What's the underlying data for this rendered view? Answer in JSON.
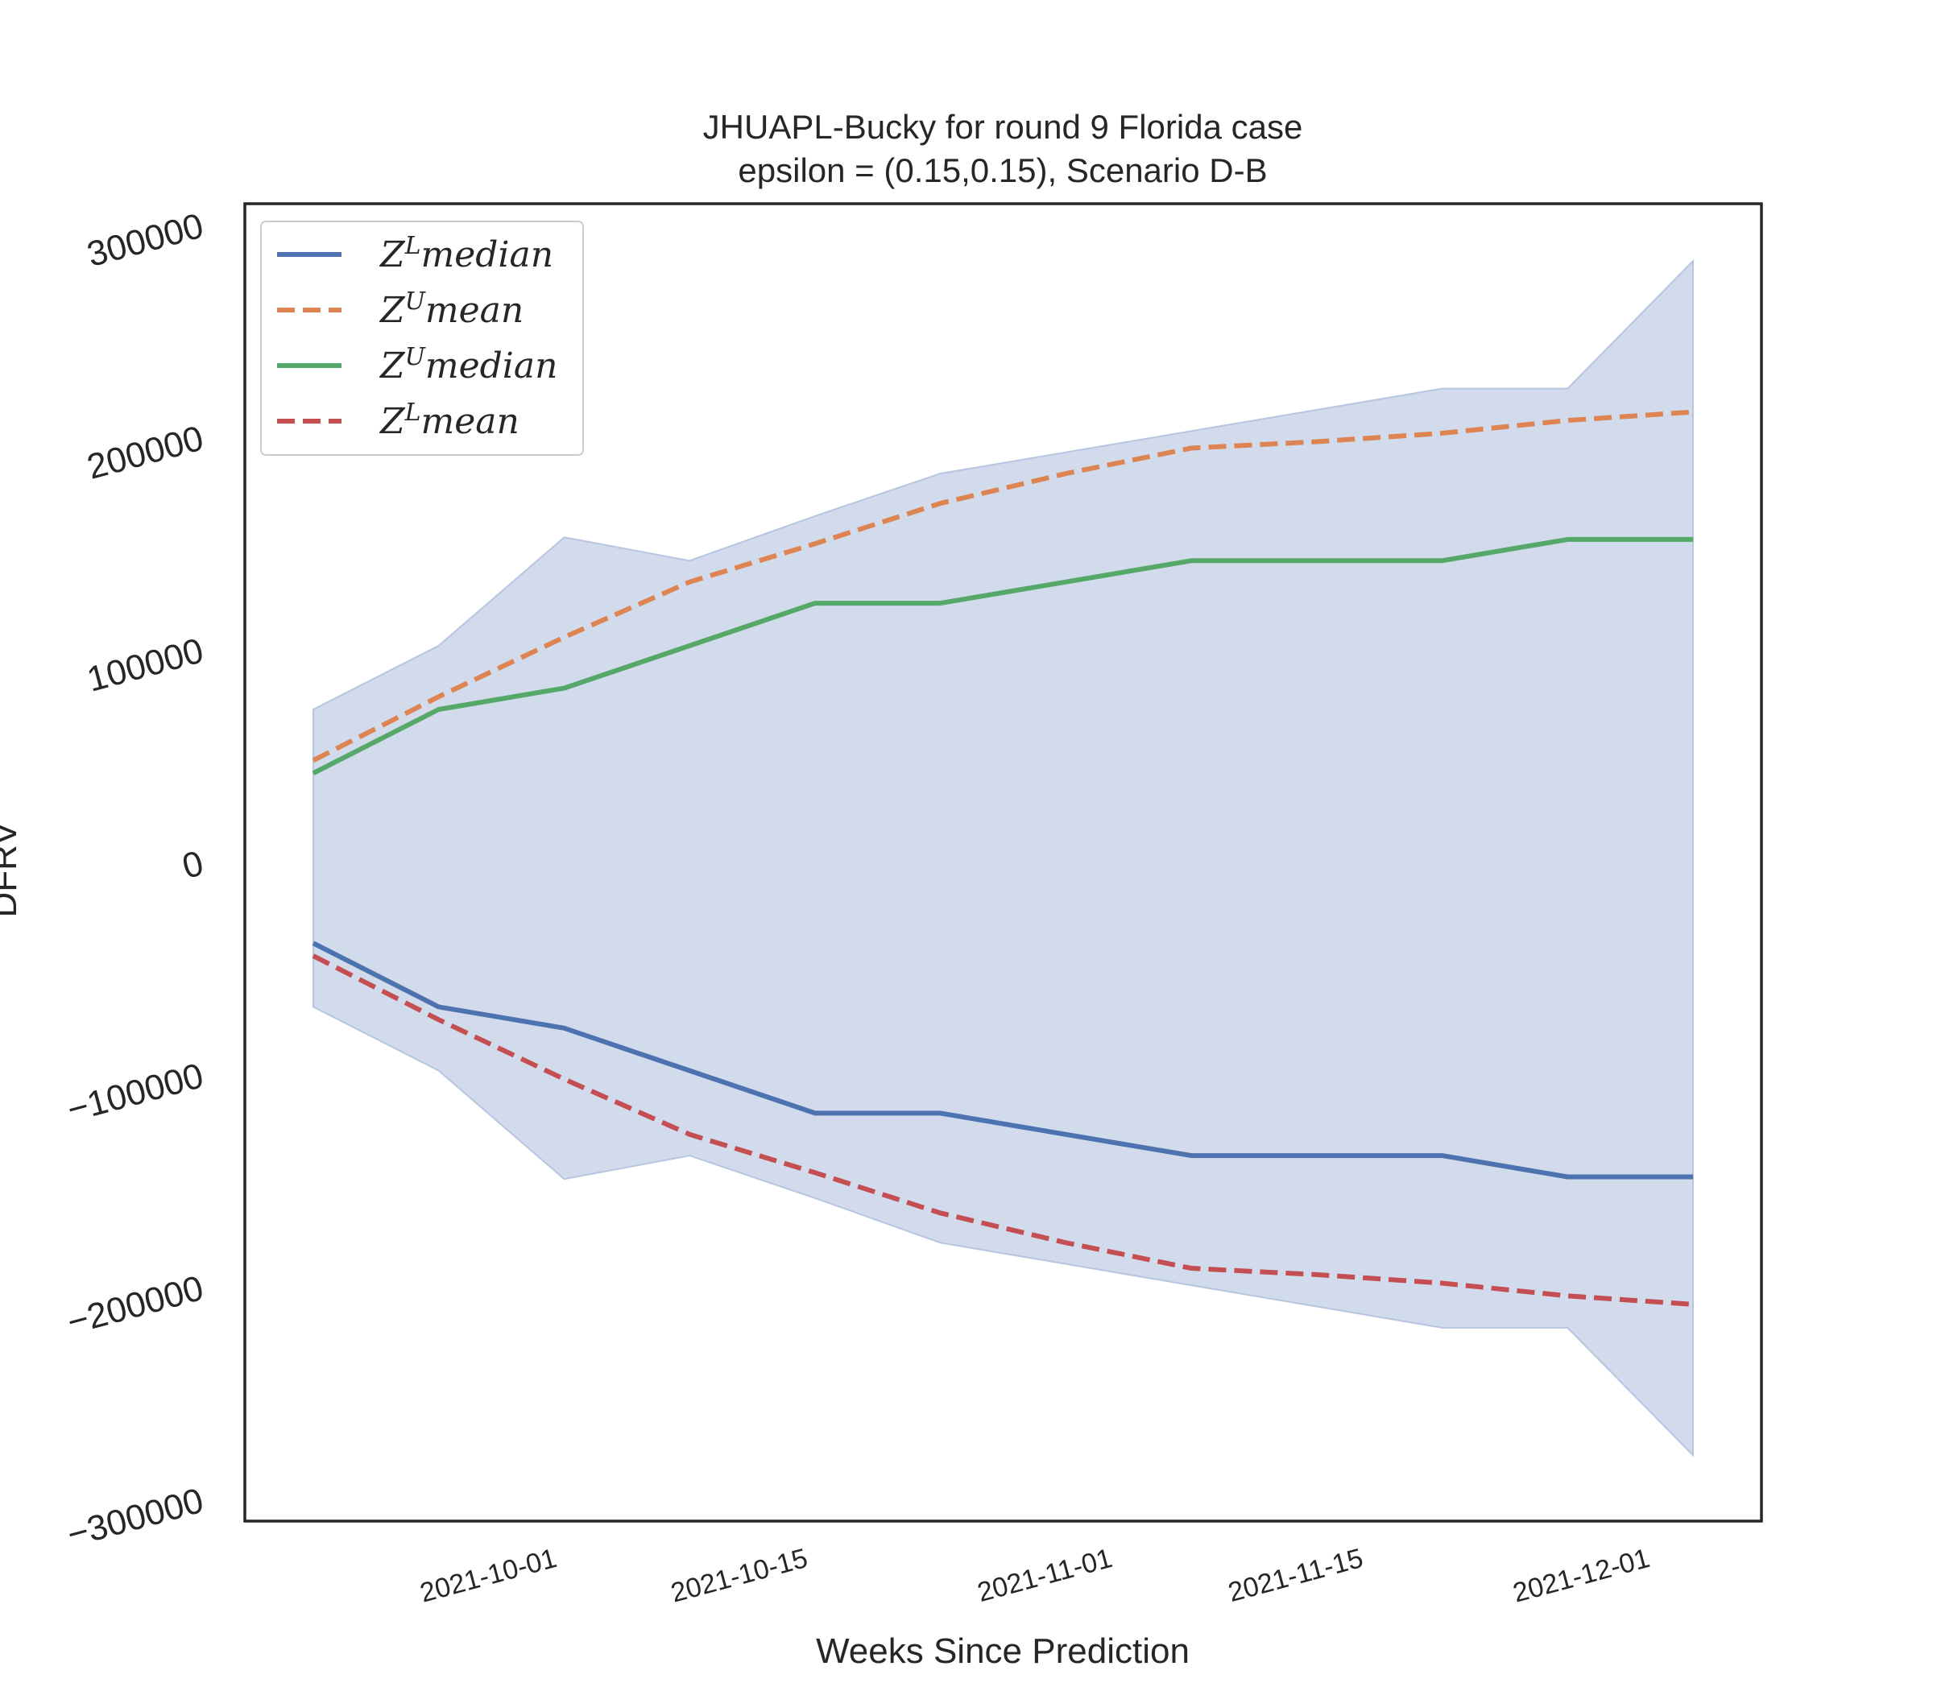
{
  "chart_data": {
    "type": "line",
    "title": "JHUAPL-Bucky for round 9 Florida  case",
    "subtitle": "epsilon = (0.15,0.15), Scenario D-B",
    "xlabel": "Weeks Since Prediction",
    "ylabel": "DFRV",
    "x": [
      "2021-09-18",
      "2021-09-25",
      "2021-10-02",
      "2021-10-09",
      "2021-10-16",
      "2021-10-23",
      "2021-10-30",
      "2021-11-06",
      "2021-11-13",
      "2021-11-20",
      "2021-11-27",
      "2021-12-04"
    ],
    "xticks": [
      "2021-10-01",
      "2021-10-15",
      "2021-11-01",
      "2021-11-15",
      "2021-12-01"
    ],
    "yticks": [
      -300000,
      -200000,
      -100000,
      0,
      100000,
      200000,
      300000
    ],
    "yticklabels": [
      "−300000",
      "−200000",
      "−100000",
      "0",
      "100000",
      "200000",
      "300000"
    ],
    "ylim": [
      -310000,
      310000
    ],
    "grid": false,
    "legend_position": "top-left",
    "band": {
      "upper": [
        72000,
        102000,
        153000,
        142000,
        163000,
        183000,
        193000,
        203000,
        213000,
        223000,
        223000,
        283000
      ],
      "lower": [
        -68000,
        -98000,
        -149000,
        -138000,
        -158000,
        -179000,
        -189000,
        -199000,
        -209000,
        -219000,
        -219000,
        -279000
      ],
      "color": "#d1dbeb"
    },
    "series": [
      {
        "name": "Z^L median",
        "legend_base": "Z",
        "legend_sup": "L",
        "legend_rest": "median",
        "color": "#4c72b0",
        "dashed": false,
        "values": [
          -38000,
          -68000,
          -78000,
          -98000,
          -118000,
          -118000,
          -128000,
          -138000,
          -138000,
          -138000,
          -148000,
          -148000
        ]
      },
      {
        "name": "Z^U mean",
        "legend_base": "Z",
        "legend_sup": "U",
        "legend_rest": "mean",
        "color": "#dd8452",
        "dashed": true,
        "values": [
          48000,
          78000,
          106000,
          132000,
          150000,
          169000,
          183000,
          195000,
          198000,
          202000,
          208000,
          212000
        ]
      },
      {
        "name": "Z^U median",
        "legend_base": "Z",
        "legend_sup": "U",
        "legend_rest": "median",
        "color": "#55a868",
        "dashed": false,
        "values": [
          42000,
          72000,
          82000,
          102000,
          122000,
          122000,
          132000,
          142000,
          142000,
          142000,
          152000,
          152000
        ]
      },
      {
        "name": "Z^L mean",
        "legend_base": "Z",
        "legend_sup": "L",
        "legend_rest": "mean",
        "color": "#c44e52",
        "dashed": true,
        "values": [
          -44000,
          -74000,
          -102000,
          -128000,
          -146000,
          -165000,
          -179000,
          -191000,
          -194000,
          -198000,
          -204000,
          -208000
        ]
      }
    ]
  }
}
